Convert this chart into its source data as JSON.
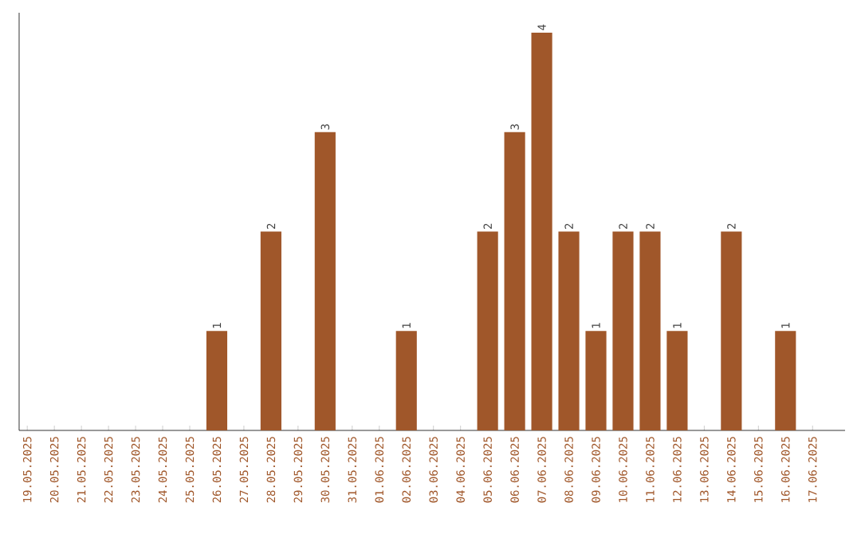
{
  "chart_data": {
    "type": "bar",
    "categories": [
      "19.05.2025",
      "20.05.2025",
      "21.05.2025",
      "22.05.2025",
      "23.05.2025",
      "24.05.2025",
      "25.05.2025",
      "26.05.2025",
      "27.05.2025",
      "28.05.2025",
      "29.05.2025",
      "30.05.2025",
      "31.05.2025",
      "01.06.2025",
      "02.06.2025",
      "03.06.2025",
      "04.06.2025",
      "05.06.2025",
      "06.06.2025",
      "07.06.2025",
      "08.06.2025",
      "09.06.2025",
      "10.06.2025",
      "11.06.2025",
      "12.06.2025",
      "13.06.2025",
      "14.06.2025",
      "15.06.2025",
      "16.06.2025",
      "17.06.2025"
    ],
    "values": [
      0,
      0,
      0,
      0,
      0,
      0,
      0,
      1,
      0,
      2,
      0,
      3,
      0,
      0,
      1,
      0,
      0,
      2,
      3,
      4,
      2,
      1,
      2,
      2,
      1,
      0,
      2,
      0,
      1,
      0
    ],
    "value_labels": [
      null,
      null,
      null,
      null,
      null,
      null,
      null,
      "1",
      null,
      "2",
      null,
      "3",
      null,
      null,
      "1",
      null,
      null,
      "2",
      "3",
      "4",
      "2",
      "1",
      "2",
      "2",
      "1",
      null,
      "2",
      null,
      "1",
      null
    ],
    "color": "#a0572a"
  }
}
